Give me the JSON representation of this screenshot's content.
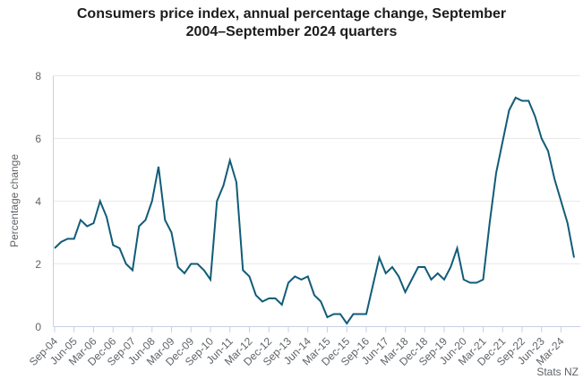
{
  "title": {
    "line1": "Consumers price index, annual percentage change, September",
    "line2": "2004–September 2024 quarters"
  },
  "source": "Stats NZ",
  "chart_data": {
    "type": "line",
    "title": "Consumers price index, annual percentage change, September 2004–September 2024 quarters",
    "xlabel": "",
    "ylabel": "Percentage change",
    "ylim": [
      0,
      8
    ],
    "yticks": [
      0,
      2,
      4,
      6,
      8
    ],
    "grid": "horizontal",
    "legend": "none",
    "x_tick_step": 3,
    "series_name": "CPI annual percentage change",
    "x": [
      "Sep-04",
      "Dec-04",
      "Mar-05",
      "Jun-05",
      "Sep-05",
      "Dec-05",
      "Mar-06",
      "Jun-06",
      "Sep-06",
      "Dec-06",
      "Mar-07",
      "Jun-07",
      "Sep-07",
      "Dec-07",
      "Mar-08",
      "Jun-08",
      "Sep-08",
      "Dec-08",
      "Mar-09",
      "Jun-09",
      "Sep-09",
      "Dec-09",
      "Mar-10",
      "Jun-10",
      "Sep-10",
      "Dec-10",
      "Mar-11",
      "Jun-11",
      "Sep-11",
      "Dec-11",
      "Mar-12",
      "Jun-12",
      "Sep-12",
      "Dec-12",
      "Mar-13",
      "Jun-13",
      "Sep-13",
      "Dec-13",
      "Mar-14",
      "Jun-14",
      "Sep-14",
      "Dec-14",
      "Mar-15",
      "Jun-15",
      "Sep-15",
      "Dec-15",
      "Mar-16",
      "Jun-16",
      "Sep-16",
      "Dec-16",
      "Mar-17",
      "Jun-17",
      "Sep-17",
      "Dec-17",
      "Mar-18",
      "Jun-18",
      "Sep-18",
      "Dec-18",
      "Mar-19",
      "Jun-19",
      "Sep-19",
      "Dec-19",
      "Mar-20",
      "Jun-20",
      "Sep-20",
      "Dec-20",
      "Mar-21",
      "Jun-21",
      "Sep-21",
      "Dec-21",
      "Mar-22",
      "Jun-22",
      "Sep-22",
      "Dec-22",
      "Mar-23",
      "Jun-23",
      "Sep-23",
      "Dec-23",
      "Mar-24",
      "Jun-24",
      "Sep-24"
    ],
    "values": [
      2.5,
      2.7,
      2.8,
      2.8,
      3.4,
      3.2,
      3.3,
      4.0,
      3.5,
      2.6,
      2.5,
      2.0,
      1.8,
      3.2,
      3.4,
      4.0,
      5.1,
      3.4,
      3.0,
      1.9,
      1.7,
      2.0,
      2.0,
      1.8,
      1.5,
      4.0,
      4.5,
      5.3,
      4.6,
      1.8,
      1.6,
      1.0,
      0.8,
      0.9,
      0.9,
      0.7,
      1.4,
      1.6,
      1.5,
      1.6,
      1.0,
      0.8,
      0.3,
      0.4,
      0.4,
      0.1,
      0.4,
      0.4,
      0.4,
      1.3,
      2.2,
      1.7,
      1.9,
      1.6,
      1.1,
      1.5,
      1.9,
      1.9,
      1.5,
      1.7,
      1.5,
      1.9,
      2.5,
      1.5,
      1.4,
      1.4,
      1.5,
      3.3,
      4.9,
      5.9,
      6.9,
      7.3,
      7.2,
      7.2,
      6.7,
      6.0,
      5.6,
      4.7,
      4.0,
      3.3,
      2.2
    ],
    "colors": {
      "line": "#115c78",
      "grid": "#e9e9e9",
      "axis": "#c8d0e7",
      "tick_text": "#5f6469",
      "title_text": "#1c1c1c"
    }
  }
}
